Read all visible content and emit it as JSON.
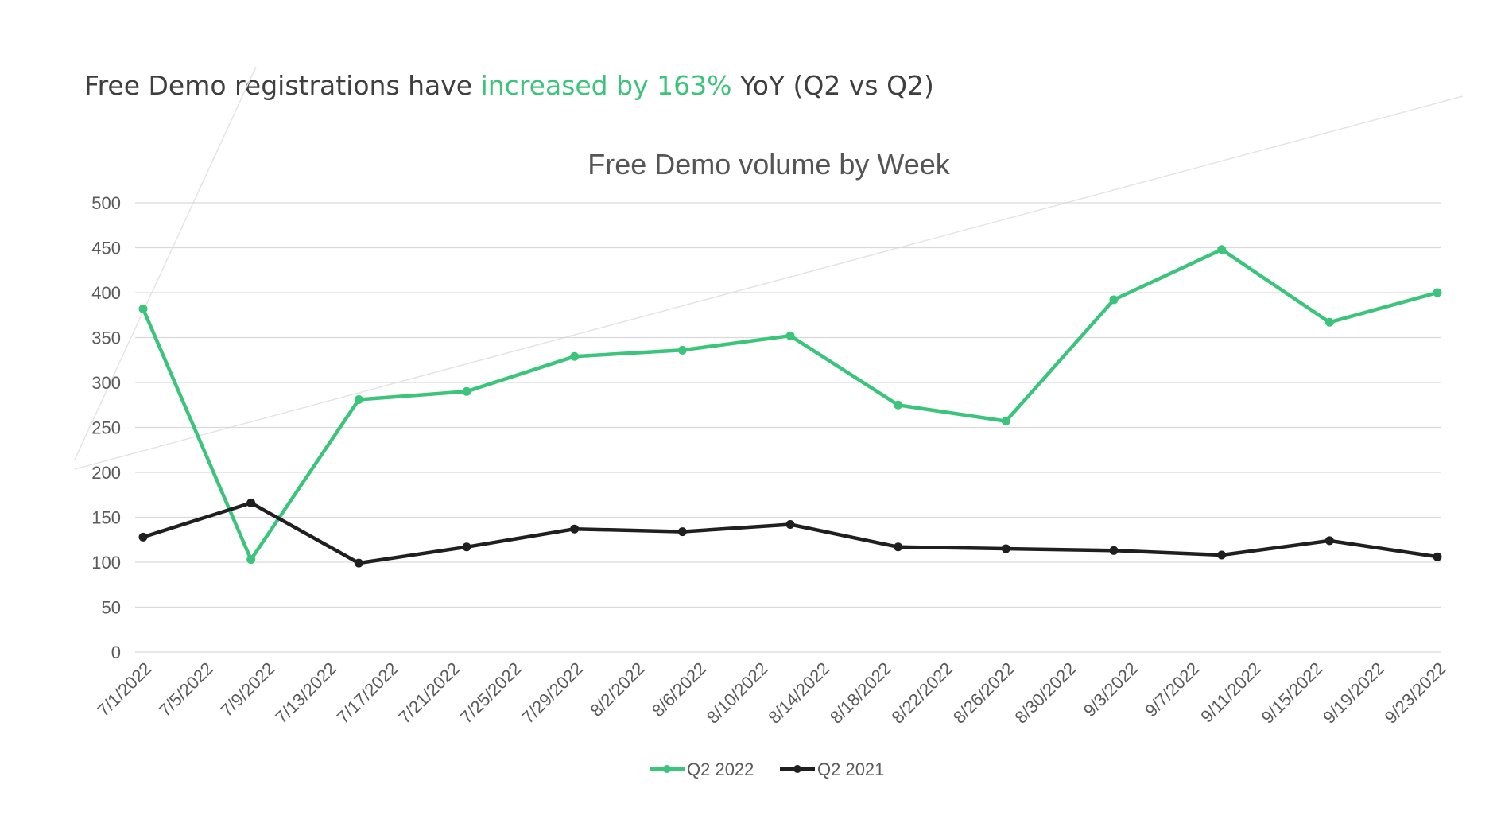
{
  "headline": {
    "part1": "Free Demo registrations have ",
    "highlight": "increased by 163%",
    "part2": " YoY (Q2 vs Q2)"
  },
  "colors": {
    "q2_2022": "#3cc47c",
    "q2_2021": "#1f1f1f",
    "grid": "#d9d9d9",
    "highlight_text": "#3cc47c"
  },
  "chart_data": {
    "type": "line",
    "title": "Free Demo volume by Week",
    "xlabel": "",
    "ylabel": "",
    "ylim": [
      0,
      500
    ],
    "yticks": [
      0,
      50,
      100,
      150,
      200,
      250,
      300,
      350,
      400,
      450,
      500
    ],
    "x_tick_labels": [
      "7/1/2022",
      "7/5/2022",
      "7/9/2022",
      "7/13/2022",
      "7/17/2022",
      "7/21/2022",
      "7/25/2022",
      "7/29/2022",
      "8/2/2022",
      "8/6/2022",
      "8/10/2022",
      "8/14/2022",
      "8/18/2022",
      "8/22/2022",
      "8/26/2022",
      "8/30/2022",
      "9/3/2022",
      "9/7/2022",
      "9/11/2022",
      "9/15/2022",
      "9/19/2022",
      "9/23/2022"
    ],
    "x": [
      "7/1/2022",
      "7/8/2022",
      "7/15/2022",
      "7/22/2022",
      "7/29/2022",
      "8/5/2022",
      "8/12/2022",
      "8/19/2022",
      "8/26/2022",
      "9/2/2022",
      "9/9/2022",
      "9/16/2022",
      "9/23/2022"
    ],
    "series": [
      {
        "name": "Q2 2022",
        "values": [
          382,
          103,
          281,
          290,
          329,
          336,
          352,
          275,
          257,
          392,
          448,
          367,
          400
        ]
      },
      {
        "name": "Q2 2021",
        "values": [
          128,
          166,
          99,
          117,
          137,
          134,
          142,
          117,
          115,
          113,
          108,
          124,
          106
        ]
      }
    ],
    "grid": true,
    "legend": "bottom"
  }
}
